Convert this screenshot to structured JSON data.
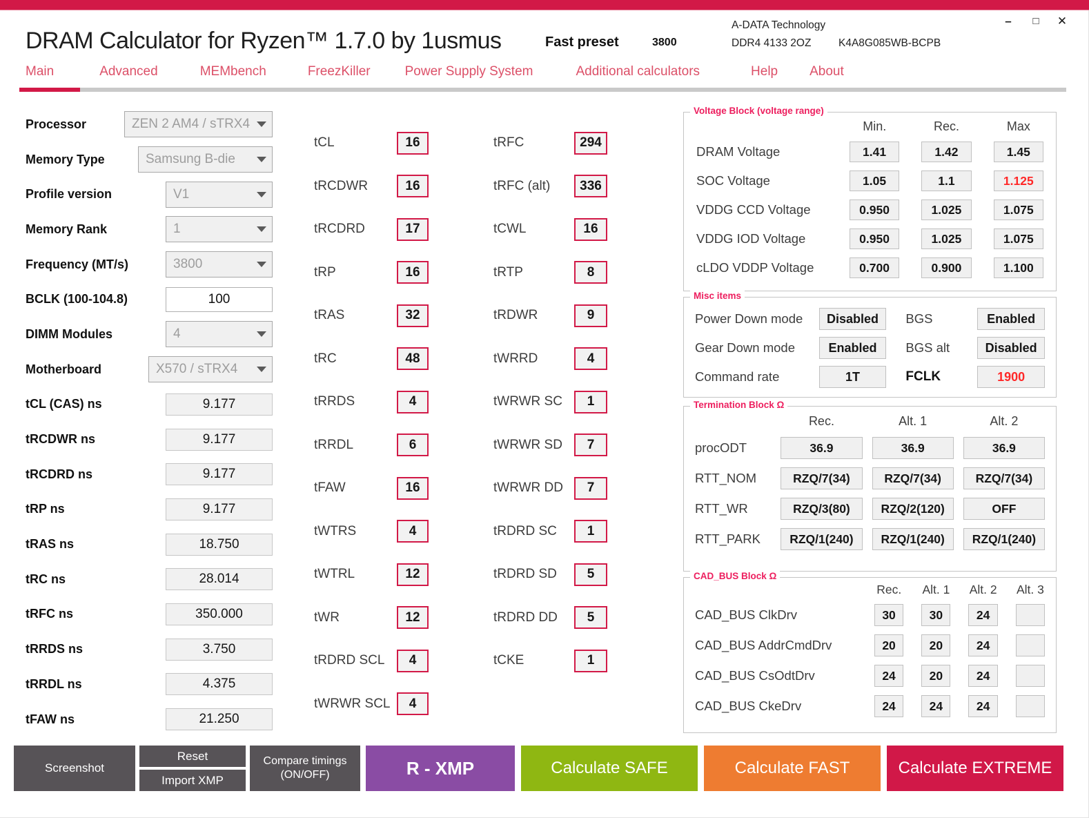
{
  "window": {
    "title": "DRAM Calculator for Ryzen™ 1.7.0 by 1usmus",
    "preset": {
      "label": "Fast preset",
      "value": "3800"
    },
    "memory_info": {
      "vendor": "A-DATA Technology",
      "module": "DDR4 4133 2OZ",
      "chip": "K4A8G085WB-BCPB"
    },
    "controls": {
      "minimize": "–",
      "maximize": "□",
      "close": "✕"
    }
  },
  "colors": {
    "accent_crimson": "#d21947",
    "tab_pink": "#dc5068",
    "alert_red": "#ff2828",
    "button_gray": "#575357",
    "button_purple": "#8a4ca4",
    "button_green": "#8fb712",
    "button_orange": "#ee7c31",
    "button_crimson": "#d11848",
    "field_gray": "#f0f0f0"
  },
  "icons": {
    "dropdown_arrow": "triangle-down",
    "minimize": "minus",
    "maximize": "square",
    "close": "x"
  },
  "tabs": [
    {
      "label": "Main",
      "active": true
    },
    {
      "label": "Advanced",
      "active": false
    },
    {
      "label": "MEMbench",
      "active": false
    },
    {
      "label": "FreezKiller",
      "active": false
    },
    {
      "label": "Power Supply System",
      "active": false
    },
    {
      "label": "Additional calculators",
      "active": false
    },
    {
      "label": "Help",
      "active": false
    },
    {
      "label": "About",
      "active": false
    }
  ],
  "config": [
    {
      "label": "Processor",
      "value": "ZEN 2 AM4 / sTRX4"
    },
    {
      "label": "Memory Type",
      "value": "Samsung B-die"
    },
    {
      "label": "Profile version",
      "value": "V1"
    },
    {
      "label": "Memory Rank",
      "value": "1"
    },
    {
      "label": "Frequency (MT/s)",
      "value": "3800"
    },
    {
      "label": "BCLK (100-104.8)",
      "value": "100"
    },
    {
      "label": "DIMM Modules",
      "value": "4"
    },
    {
      "label": "Motherboard",
      "value": "X570 / sTRX4"
    }
  ],
  "ns_fields": [
    {
      "label": "tCL (CAS) ns",
      "value": "9.177"
    },
    {
      "label": "tRCDWR ns",
      "value": "9.177"
    },
    {
      "label": "tRCDRD ns",
      "value": "9.177"
    },
    {
      "label": "tRP ns",
      "value": "9.177"
    },
    {
      "label": "tRAS ns",
      "value": "18.750"
    },
    {
      "label": "tRC ns",
      "value": "28.014"
    },
    {
      "label": "tRFC ns",
      "value": "350.000"
    },
    {
      "label": "tRRDS ns",
      "value": "3.750"
    },
    {
      "label": "tRRDL ns",
      "value": "4.375"
    },
    {
      "label": "tFAW ns",
      "value": "21.250"
    }
  ],
  "timings_col1": [
    {
      "label": "tCL",
      "value": "16"
    },
    {
      "label": "tRCDWR",
      "value": "16"
    },
    {
      "label": "tRCDRD",
      "value": "17"
    },
    {
      "label": "tRP",
      "value": "16"
    },
    {
      "label": "tRAS",
      "value": "32"
    },
    {
      "label": "tRC",
      "value": "48"
    },
    {
      "label": "tRRDS",
      "value": "4"
    },
    {
      "label": "tRRDL",
      "value": "6"
    },
    {
      "label": "tFAW",
      "value": "16"
    },
    {
      "label": "tWTRS",
      "value": "4"
    },
    {
      "label": "tWTRL",
      "value": "12"
    },
    {
      "label": "tWR",
      "value": "12"
    },
    {
      "label": "tRDRD SCL",
      "value": "4"
    },
    {
      "label": "tWRWR SCL",
      "value": "4"
    }
  ],
  "timings_col2": [
    {
      "label": "tRFC",
      "value": "294"
    },
    {
      "label": "tRFC (alt)",
      "value": "336"
    },
    {
      "label": "tCWL",
      "value": "16"
    },
    {
      "label": "tRTP",
      "value": "8"
    },
    {
      "label": "tRDWR",
      "value": "9"
    },
    {
      "label": "tWRRD",
      "value": "4"
    },
    {
      "label": "tWRWR SC",
      "value": "1"
    },
    {
      "label": "tWRWR SD",
      "value": "7"
    },
    {
      "label": "tWRWR DD",
      "value": "7"
    },
    {
      "label": "tRDRD SC",
      "value": "1"
    },
    {
      "label": "tRDRD SD",
      "value": "5"
    },
    {
      "label": "tRDRD DD",
      "value": "5"
    },
    {
      "label": "tCKE",
      "value": "1"
    }
  ],
  "voltage_block": {
    "legend": "Voltage Block (voltage range)",
    "columns": [
      "Min.",
      "Rec.",
      "Max"
    ],
    "rows": [
      {
        "label": "DRAM Voltage",
        "min": "1.41",
        "rec": "1.42",
        "max": "1.45"
      },
      {
        "label": "SOC Voltage",
        "min": "1.05",
        "rec": "1.1",
        "max": "1.125"
      },
      {
        "label": "VDDG CCD Voltage",
        "min": "0.950",
        "rec": "1.025",
        "max": "1.075"
      },
      {
        "label": "VDDG IOD Voltage",
        "min": "0.950",
        "rec": "1.025",
        "max": "1.075"
      },
      {
        "label": "cLDO VDDP Voltage",
        "min": "0.700",
        "rec": "0.900",
        "max": "1.100"
      }
    ]
  },
  "misc_items": {
    "legend": "Misc items",
    "rows": [
      {
        "label_a": "Power Down mode",
        "value_a": "Disabled",
        "label_b": "BGS",
        "value_b": "Enabled"
      },
      {
        "label_a": "Gear Down mode",
        "value_a": "Enabled",
        "label_b": "BGS alt",
        "value_b": "Disabled"
      },
      {
        "label_a": "Command rate",
        "value_a": "1T",
        "label_b": "FCLK",
        "value_b": "1900"
      }
    ]
  },
  "termination_block": {
    "legend": "Termination Block Ω",
    "columns": [
      "Rec.",
      "Alt. 1",
      "Alt. 2"
    ],
    "rows": [
      {
        "label": "procODT",
        "values": [
          "36.9",
          "36.9",
          "36.9"
        ]
      },
      {
        "label": "RTT_NOM",
        "values": [
          "RZQ/7(34)",
          "RZQ/7(34)",
          "RZQ/7(34)"
        ]
      },
      {
        "label": "RTT_WR",
        "values": [
          "RZQ/3(80)",
          "RZQ/2(120)",
          "OFF"
        ]
      },
      {
        "label": "RTT_PARK",
        "values": [
          "RZQ/1(240)",
          "RZQ/1(240)",
          "RZQ/1(240)"
        ]
      }
    ]
  },
  "cad_bus_block": {
    "legend": "CAD_BUS Block Ω",
    "columns": [
      "Rec.",
      "Alt. 1",
      "Alt. 2",
      "Alt. 3"
    ],
    "rows": [
      {
        "label": "CAD_BUS ClkDrv",
        "values": [
          "30",
          "30",
          "24",
          ""
        ]
      },
      {
        "label": "CAD_BUS AddrCmdDrv",
        "values": [
          "20",
          "20",
          "24",
          ""
        ]
      },
      {
        "label": "CAD_BUS CsOdtDrv",
        "values": [
          "24",
          "20",
          "24",
          ""
        ]
      },
      {
        "label": "CAD_BUS CkeDrv",
        "values": [
          "24",
          "24",
          "24",
          ""
        ]
      }
    ]
  },
  "footer": {
    "screenshot": "Screenshot",
    "reset": "Reset",
    "import_xmp": "Import XMP",
    "compare_line1": "Compare timings",
    "compare_line2": "(ON/OFF)",
    "r_xmp": "R - XMP",
    "calc_safe": "Calculate SAFE",
    "calc_fast": "Calculate FAST",
    "calc_extreme": "Calculate EXTREME"
  }
}
